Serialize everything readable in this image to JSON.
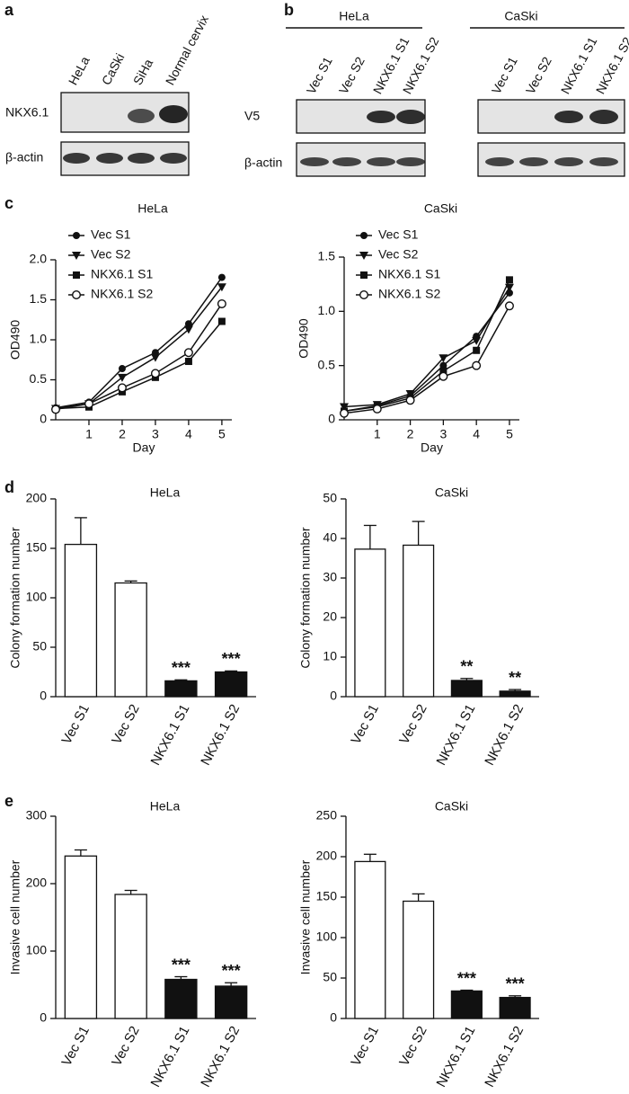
{
  "panel_labels": [
    "a",
    "b",
    "c",
    "d",
    "e"
  ],
  "blots": {
    "a": {
      "lanes": [
        "HeLa",
        "CaSki",
        "SiHa",
        "Normal cervix"
      ],
      "rows": [
        "NKX6.1",
        "β-actin"
      ]
    },
    "b": {
      "groups": [
        {
          "name": "HeLa",
          "lanes": [
            "Vec S1",
            "Vec S2",
            "NKX6.1 S1",
            "NKX6.1 S2"
          ]
        },
        {
          "name": "CaSki",
          "lanes": [
            "Vec S1",
            "Vec S2",
            "NKX6.1 S1",
            "NKX6.1 S2"
          ]
        }
      ],
      "rows": [
        "V5",
        "β-actin"
      ]
    }
  },
  "chart_data": [
    {
      "type": "line",
      "title": "HeLa",
      "xlabel": "Day",
      "ylabel": "OD490",
      "x": [
        0,
        1,
        2,
        3,
        4,
        5
      ],
      "xlim": [
        0,
        5.3
      ],
      "xticks": [
        1,
        2,
        3,
        4,
        5
      ],
      "ylim": [
        0,
        2.0
      ],
      "yticks": [
        0,
        0.5,
        {
          "value": 1.0,
          "label": "1.0"
        },
        1.5,
        {
          "value": 2.0,
          "label": "2.0"
        }
      ],
      "legend": "upper-left",
      "series": [
        {
          "name": "Vec S1",
          "color": "#111111",
          "marker": "circle",
          "values": [
            0.15,
            0.22,
            0.64,
            0.84,
            1.2,
            1.78
          ]
        },
        {
          "name": "Vec S2",
          "color": "#111111",
          "marker": "triangle-down",
          "values": [
            0.14,
            0.2,
            0.53,
            0.78,
            1.13,
            1.66
          ]
        },
        {
          "name": "NKX6.1 S1",
          "color": "#111111",
          "marker": "square",
          "values": [
            0.14,
            0.16,
            0.35,
            0.53,
            0.73,
            1.23
          ]
        },
        {
          "name": "NKX6.1 S2",
          "color": "#111111",
          "marker": "open-circle",
          "values": [
            0.13,
            0.2,
            0.4,
            0.58,
            0.84,
            1.45
          ]
        }
      ]
    },
    {
      "type": "line",
      "title": "CaSki",
      "xlabel": "Day",
      "ylabel": "OD490",
      "x": [
        0,
        1,
        2,
        3,
        4,
        5
      ],
      "xlim": [
        0,
        5.3
      ],
      "xticks": [
        1,
        2,
        3,
        4,
        5
      ],
      "ylim": [
        0,
        1.5
      ],
      "yticks": [
        0,
        0.5,
        {
          "value": 1.0,
          "label": "1.0"
        },
        1.5
      ],
      "legend": "upper-left",
      "series": [
        {
          "name": "Vec S1",
          "color": "#111111",
          "marker": "circle",
          "values": [
            0.08,
            0.13,
            0.22,
            0.5,
            0.77,
            1.17
          ]
        },
        {
          "name": "Vec S2",
          "color": "#111111",
          "marker": "triangle-down",
          "values": [
            0.12,
            0.14,
            0.24,
            0.57,
            0.73,
            1.22
          ]
        },
        {
          "name": "NKX6.1 S1",
          "color": "#111111",
          "marker": "square",
          "values": [
            0.08,
            0.12,
            0.2,
            0.45,
            0.64,
            1.29
          ]
        },
        {
          "name": "NKX6.1 S2",
          "color": "#111111",
          "marker": "open-circle",
          "values": [
            0.06,
            0.1,
            0.18,
            0.4,
            0.5,
            1.05
          ]
        }
      ]
    },
    {
      "type": "bar",
      "title": "HeLa",
      "ylabel": "Colony formation number",
      "categories": [
        "Vec S1",
        "Vec S2",
        "NKX6.1 S1",
        "NKX6.1 S2"
      ],
      "values": [
        154,
        115,
        16,
        25
      ],
      "errors": [
        27,
        2,
        1,
        1
      ],
      "colors": [
        "#ffffff",
        "#ffffff",
        "#111111",
        "#111111"
      ],
      "significance": [
        null,
        null,
        "***",
        "***"
      ],
      "ylim": [
        0,
        200
      ],
      "yticks": [
        0,
        50,
        100,
        150,
        200
      ]
    },
    {
      "type": "bar",
      "title": "CaSki",
      "ylabel": "Colony formation number",
      "categories": [
        "Vec S1",
        "Vec S2",
        "NKX6.1 S1",
        "NKX6.1 S2"
      ],
      "values": [
        37.3,
        38.3,
        4.1,
        1.4
      ],
      "errors": [
        6,
        6,
        0.5,
        0.4
      ],
      "colors": [
        "#ffffff",
        "#ffffff",
        "#111111",
        "#111111"
      ],
      "significance": [
        null,
        null,
        "**",
        "**"
      ],
      "ylim": [
        0,
        50
      ],
      "yticks": [
        0,
        10,
        20,
        30,
        40,
        50
      ]
    },
    {
      "type": "bar",
      "title": "HeLa",
      "ylabel": "Invasive cell number",
      "categories": [
        "Vec S1",
        "Vec S2",
        "NKX6.1 S1",
        "NKX6.1 S2"
      ],
      "values": [
        241,
        184,
        58,
        48
      ],
      "errors": [
        9,
        6,
        4,
        5
      ],
      "colors": [
        "#ffffff",
        "#ffffff",
        "#111111",
        "#111111"
      ],
      "significance": [
        null,
        null,
        "***",
        "***"
      ],
      "ylim": [
        0,
        300
      ],
      "yticks": [
        0,
        100,
        200,
        300
      ]
    },
    {
      "type": "bar",
      "title": "CaSki",
      "ylabel": "Invasive cell number",
      "categories": [
        "Vec S1",
        "Vec S2",
        "NKX6.1 S1",
        "NKX6.1 S2"
      ],
      "values": [
        194,
        145,
        34,
        26
      ],
      "errors": [
        9,
        9,
        1,
        2
      ],
      "colors": [
        "#ffffff",
        "#ffffff",
        "#111111",
        "#111111"
      ],
      "significance": [
        null,
        null,
        "***",
        "***"
      ],
      "ylim": [
        0,
        250
      ],
      "yticks": [
        0,
        50,
        100,
        150,
        200,
        250
      ]
    }
  ]
}
